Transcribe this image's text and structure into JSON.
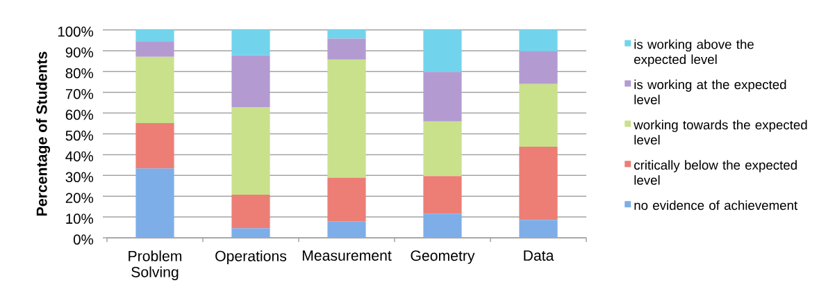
{
  "chart_data": {
    "type": "bar",
    "stacked": true,
    "ylabel": "Percentage of Students",
    "categories": [
      "Problem Solving",
      "Operations",
      "Measurement",
      "Geometry",
      "Data"
    ],
    "series": [
      {
        "name": "no evidence of achievement",
        "color": "#7eaee8",
        "values": [
          33.4,
          4.6,
          7.9,
          11.6,
          8.6
        ]
      },
      {
        "name": "critically below the expected level",
        "color": "#ec7e76",
        "values": [
          21.8,
          16.1,
          21.0,
          18.1,
          35.2
        ]
      },
      {
        "name": "working towards the expected level",
        "color": "#c9e18b",
        "values": [
          31.8,
          42.2,
          56.8,
          26.2,
          30.2
        ]
      },
      {
        "name": "is working at the expected level",
        "color": "#b39bd2",
        "values": [
          7.6,
          24.8,
          10.1,
          23.9,
          15.7
        ]
      },
      {
        "name": "is working above the expected level",
        "color": "#72d4ec",
        "values": [
          5.4,
          12.3,
          4.2,
          20.2,
          10.3
        ]
      }
    ],
    "ylim": [
      0,
      100
    ],
    "yticks": [
      {
        "value": 0,
        "label": "0%"
      },
      {
        "value": 10,
        "label": "10%"
      },
      {
        "value": 20,
        "label": "20%"
      },
      {
        "value": 30,
        "label": "30%"
      },
      {
        "value": 40,
        "label": "40%"
      },
      {
        "value": 50,
        "label": "50%"
      },
      {
        "value": 60,
        "label": "60%"
      },
      {
        "value": 70,
        "label": "70%"
      },
      {
        "value": 80,
        "label": "80%"
      },
      {
        "value": 90,
        "label": "90%"
      },
      {
        "value": 100,
        "label": "100%"
      }
    ],
    "grid": "y",
    "legend": "right"
  }
}
